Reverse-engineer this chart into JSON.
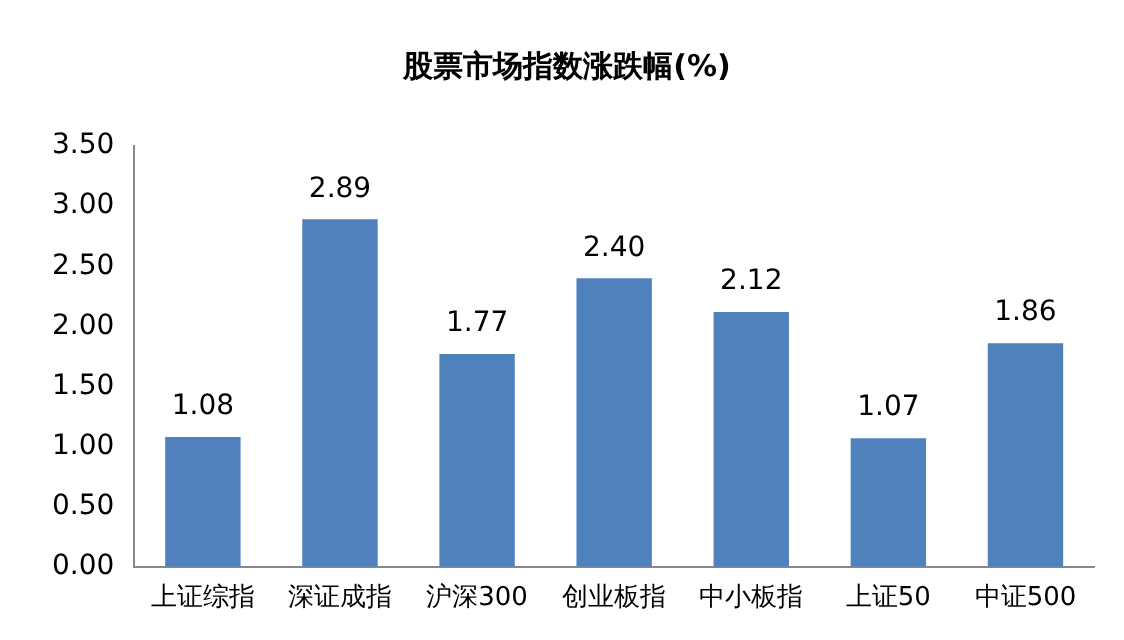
{
  "chart_data": {
    "type": "bar",
    "title": "股票市场指数涨跌幅(%)",
    "categories": [
      "上证综指",
      "深证成指",
      "沪深300",
      "创业板指",
      "中小板指",
      "上证50",
      "中证500"
    ],
    "values": [
      1.08,
      2.89,
      1.77,
      2.4,
      2.12,
      1.07,
      1.86
    ],
    "value_labels": [
      "1.08",
      "2.89",
      "1.77",
      "2.40",
      "2.12",
      "1.07",
      "1.86"
    ],
    "color": "#4f81bd",
    "ylim": [
      0,
      3.5
    ],
    "yticks": [
      {
        "value": 0,
        "label": "0.00"
      },
      {
        "value": 0.5,
        "label": "0.50"
      },
      {
        "value": 1,
        "label": "1.00"
      },
      {
        "value": 1.5,
        "label": "1.50"
      },
      {
        "value": 2,
        "label": "2.00"
      },
      {
        "value": 2.5,
        "label": "2.50"
      },
      {
        "value": 3,
        "label": "3.00"
      },
      {
        "value": 3.5,
        "label": "3.50"
      }
    ],
    "grid": false,
    "legend": false
  }
}
